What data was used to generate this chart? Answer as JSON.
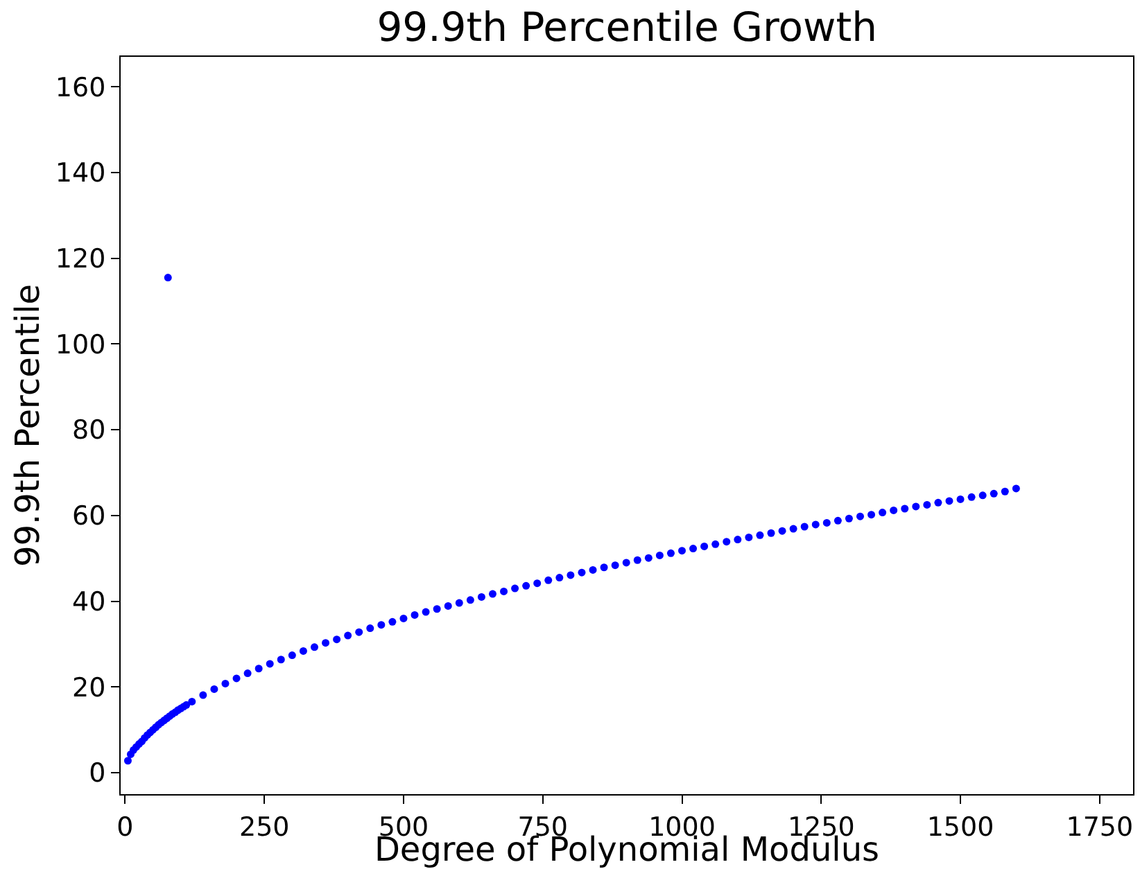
{
  "chart_data": {
    "type": "scatter",
    "title": "99.9th Percentile Growth",
    "xlabel": "Degree of Polynomial Modulus",
    "ylabel": "99.9th Percentile",
    "x": [
      5,
      10,
      15,
      20,
      25,
      30,
      35,
      40,
      45,
      50,
      55,
      60,
      65,
      70,
      75,
      77,
      80,
      85,
      90,
      95,
      100,
      105,
      110,
      120,
      140,
      160,
      180,
      200,
      220,
      240,
      260,
      280,
      300,
      320,
      340,
      360,
      380,
      400,
      420,
      440,
      460,
      480,
      500,
      520,
      540,
      560,
      580,
      600,
      620,
      640,
      660,
      680,
      700,
      720,
      740,
      760,
      780,
      800,
      820,
      840,
      860,
      880,
      900,
      920,
      940,
      960,
      980,
      1000,
      1020,
      1040,
      1060,
      1080,
      1100,
      1120,
      1140,
      1160,
      1180,
      1200,
      1220,
      1240,
      1260,
      1280,
      1300,
      1320,
      1340,
      1360,
      1380,
      1400,
      1420,
      1440,
      1460,
      1480,
      1500,
      1520,
      1540,
      1560,
      1580,
      1600
    ],
    "series": [
      {
        "color": "#0000ff",
        "values": [
          2.8,
          4.3,
          5.3,
          6.0,
          6.7,
          7.3,
          8.1,
          8.8,
          9.4,
          10.0,
          10.6,
          11.2,
          11.7,
          12.2,
          12.7,
          115.5,
          13.2,
          13.7,
          14.1,
          14.6,
          15.0,
          15.4,
          15.8,
          16.6,
          18.1,
          19.5,
          20.8,
          22.0,
          23.2,
          24.3,
          25.4,
          26.4,
          27.4,
          28.4,
          29.3,
          30.3,
          31.1,
          32.0,
          32.8,
          33.7,
          34.5,
          35.2,
          36.0,
          36.8,
          37.5,
          38.2,
          38.9,
          39.6,
          40.3,
          41.0,
          41.7,
          42.3,
          43.0,
          43.6,
          44.2,
          44.9,
          45.5,
          46.1,
          46.7,
          47.3,
          47.9,
          48.4,
          49.0,
          49.6,
          50.1,
          50.7,
          51.2,
          51.8,
          52.3,
          52.8,
          53.3,
          53.9,
          54.4,
          54.9,
          55.4,
          55.9,
          56.4,
          56.9,
          57.4,
          57.9,
          58.3,
          58.8,
          59.3,
          59.8,
          60.2,
          60.7,
          61.2,
          61.6,
          62.1,
          62.5,
          63.0,
          63.4,
          63.8,
          64.3,
          64.7,
          65.1,
          65.6,
          66.3
        ]
      }
    ],
    "xlim": [
      -8,
      1810
    ],
    "xticks": [
      0,
      250,
      500,
      750,
      1000,
      1250,
      1500,
      1750
    ],
    "ylim": [
      -5,
      167
    ],
    "yticks": [
      0,
      20,
      40,
      60,
      80,
      100,
      120,
      140,
      160
    ],
    "grid": false,
    "marker": "circle"
  }
}
